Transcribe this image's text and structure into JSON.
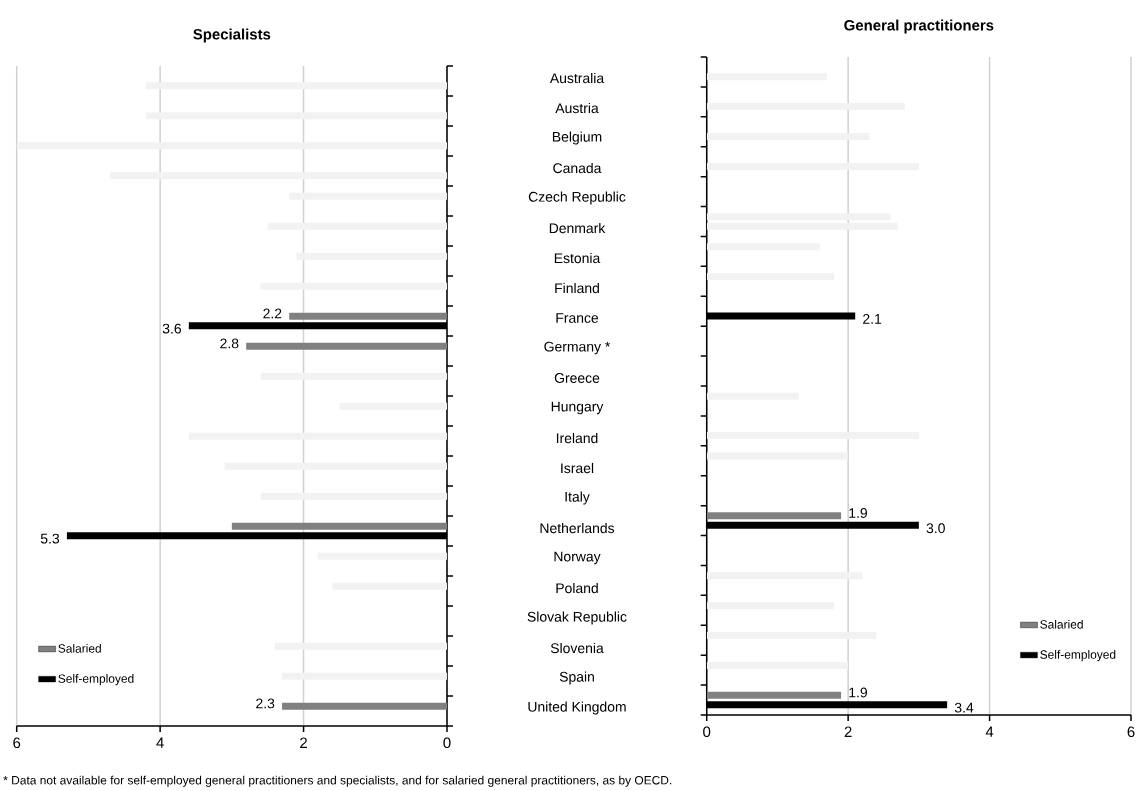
{
  "chart_data": [
    {
      "type": "bar",
      "orientation": "horizontal",
      "title": "Specialists",
      "categories": [
        "Australia",
        "Austria",
        "Belgium",
        "Canada",
        "Czech Republic",
        "Denmark",
        "Estonia",
        "Finland",
        "France",
        "Germany *",
        "Greece",
        "Hungary",
        "Ireland",
        "Israel",
        "Italy",
        "Netherlands",
        "Norway",
        "Poland",
        "Slovak Republic",
        "Slovenia",
        "Spain",
        "United Kingdom"
      ],
      "series": [
        {
          "name": "Salaried",
          "color": "#808080",
          "values": [
            null,
            null,
            null,
            null,
            2.2,
            2.5,
            2.1,
            2.6,
            2.2,
            2.8,
            2.6,
            1.5,
            3.6,
            3.1,
            2.6,
            3.0,
            1.8,
            1.6,
            null,
            2.4,
            2.3,
            2.3
          ],
          "colors": [
            "#f2f2f2",
            "#f2f2f2",
            "#f2f2f2",
            "#f2f2f2",
            "#f2f2f2",
            "#f2f2f2",
            "#f2f2f2",
            "#f2f2f2",
            "#808080",
            "#808080",
            "#f2f2f2",
            "#f2f2f2",
            "#f2f2f2",
            "#f2f2f2",
            "#f2f2f2",
            "#808080",
            "#f2f2f2",
            "#f2f2f2",
            "#f2f2f2",
            "#f2f2f2",
            "#f2f2f2",
            "#808080"
          ],
          "value_labels": [
            null,
            null,
            null,
            null,
            null,
            null,
            null,
            null,
            "2.2",
            "2.8",
            null,
            null,
            null,
            null,
            null,
            null,
            null,
            null,
            null,
            null,
            null,
            "2.3"
          ]
        },
        {
          "name": "Self-employed",
          "color": "#000000",
          "values": [
            4.2,
            4.2,
            6.0,
            4.7,
            null,
            null,
            null,
            null,
            3.6,
            null,
            null,
            null,
            null,
            null,
            null,
            5.3,
            null,
            null,
            null,
            null,
            null,
            null
          ],
          "colors": [
            "#f2f2f2",
            "#f2f2f2",
            "#f2f2f2",
            "#f2f2f2",
            "#f2f2f2",
            "#f2f2f2",
            "#f2f2f2",
            "#f2f2f2",
            "#000000",
            "#f2f2f2",
            "#f2f2f2",
            "#f2f2f2",
            "#f2f2f2",
            "#f2f2f2",
            "#f2f2f2",
            "#000000",
            "#f2f2f2",
            "#f2f2f2",
            "#f2f2f2",
            "#f2f2f2",
            "#f2f2f2",
            "#f2f2f2"
          ],
          "value_labels": [
            null,
            null,
            null,
            null,
            null,
            null,
            null,
            null,
            "3.6",
            null,
            null,
            null,
            null,
            null,
            null,
            "5.3",
            null,
            null,
            null,
            null,
            null,
            null
          ]
        }
      ],
      "xlim": [
        6,
        0
      ],
      "xticks": [
        0,
        2,
        4,
        6
      ],
      "grid": "x",
      "legend": "bottom left",
      "annotations": [
        "* Data not available for self-employed general practitioners and specialists, and for salaried general practitioners, as by OECD."
      ]
    },
    {
      "type": "bar",
      "orientation": "horizontal",
      "title": "General practitioners",
      "categories": [
        null,
        null,
        null,
        null,
        null,
        null,
        null,
        null,
        null,
        null,
        null,
        null,
        null,
        null,
        null,
        null,
        null,
        null,
        null,
        null,
        null,
        null
      ],
      "series": [
        {
          "name": "Salaried",
          "color": "#808080",
          "values": [
            null,
            null,
            null,
            null,
            null,
            2.6,
            1.6,
            1.8,
            null,
            null,
            null,
            1.3,
            null,
            2.0,
            null,
            1.9,
            null,
            2.2,
            1.8,
            2.4,
            2.0,
            1.9
          ],
          "colors": [
            "#f2f2f2",
            "#f2f2f2",
            "#f2f2f2",
            "#f2f2f2",
            "#f2f2f2",
            "#f2f2f2",
            "#f2f2f2",
            "#f2f2f2",
            "#f2f2f2",
            "#f2f2f2",
            "#f2f2f2",
            "#f2f2f2",
            "#f2f2f2",
            "#f2f2f2",
            "#f2f2f2",
            "#808080",
            "#f2f2f2",
            "#f2f2f2",
            "#f2f2f2",
            "#f2f2f2",
            "#f2f2f2",
            "#808080"
          ],
          "value_labels": [
            null,
            null,
            null,
            null,
            null,
            null,
            null,
            null,
            null,
            null,
            null,
            null,
            null,
            null,
            null,
            "1.9",
            null,
            null,
            null,
            null,
            null,
            "1.9"
          ]
        },
        {
          "name": "Self-employed",
          "color": "#000000",
          "values": [
            1.7,
            2.8,
            2.3,
            3.0,
            null,
            2.7,
            null,
            null,
            2.1,
            null,
            null,
            null,
            3.0,
            null,
            null,
            3.0,
            null,
            null,
            null,
            null,
            null,
            3.4
          ],
          "colors": [
            "#f2f2f2",
            "#f2f2f2",
            "#f2f2f2",
            "#f2f2f2",
            "#f2f2f2",
            "#f2f2f2",
            "#f2f2f2",
            "#f2f2f2",
            "#000000",
            "#f2f2f2",
            "#f2f2f2",
            "#f2f2f2",
            "#f2f2f2",
            "#f2f2f2",
            "#f2f2f2",
            "#000000",
            "#f2f2f2",
            "#f2f2f2",
            "#f2f2f2",
            "#f2f2f2",
            "#f2f2f2",
            "#000000"
          ],
          "value_labels": [
            null,
            null,
            null,
            null,
            null,
            null,
            null,
            null,
            "2.1",
            null,
            null,
            null,
            null,
            null,
            null,
            "3.0",
            null,
            null,
            null,
            null,
            null,
            "3.4"
          ]
        }
      ],
      "xlim": [
        0,
        6
      ],
      "xticks": [
        0,
        2,
        4,
        6
      ],
      "grid": "x",
      "legend": "bottom right",
      "tick_labels": "x"
    }
  ]
}
